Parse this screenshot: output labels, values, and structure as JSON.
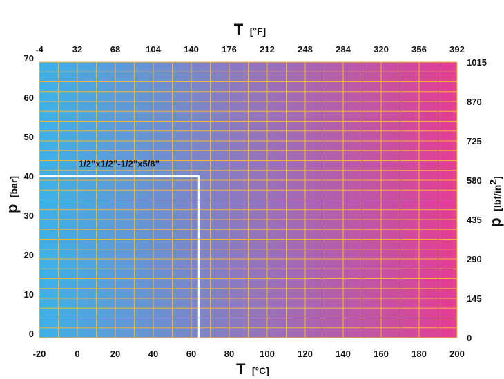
{
  "chart_data": {
    "type": "line",
    "x_bottom": {
      "symbol": "T",
      "unit": "[°C]",
      "range": [
        -20,
        200
      ],
      "ticks": [
        -20,
        0,
        20,
        40,
        60,
        80,
        100,
        120,
        140,
        160,
        180,
        200
      ],
      "tick_labels": [
        "-20",
        "0",
        "20",
        "40",
        "60",
        "80",
        "100",
        "120",
        "140",
        "160",
        "180",
        "200"
      ]
    },
    "x_top": {
      "symbol": "T",
      "unit": "[°F]",
      "tick_labels": [
        "-4",
        "32",
        "68",
        "104",
        "140",
        "176",
        "212",
        "248",
        "284",
        "320",
        "356",
        "392"
      ]
    },
    "y_left": {
      "symbol": "p",
      "unit": "[bar]",
      "range": [
        0,
        70
      ],
      "ticks": [
        0,
        10,
        20,
        30,
        40,
        50,
        60,
        70
      ],
      "tick_labels": [
        "0",
        "10",
        "20",
        "30",
        "40",
        "50",
        "60",
        "70"
      ]
    },
    "y_right": {
      "symbol": "p",
      "unit_prefix": "[lbf/in",
      "unit_sup": "2",
      "unit_suffix": "]",
      "tick_labels": [
        "0",
        "145",
        "290",
        "435",
        "580",
        "725",
        "870",
        "1015"
      ]
    },
    "grid": true,
    "grid_color": "#f2b43a",
    "background_gradient": [
      "#3cb2e8",
      "#e43c93"
    ],
    "series": [
      {
        "name": "1/2”x1/2”-1/2”x5/8”",
        "color": "#ffffff",
        "x": [
          -20,
          64,
          64
        ],
        "y": [
          41,
          41,
          0
        ]
      }
    ]
  }
}
